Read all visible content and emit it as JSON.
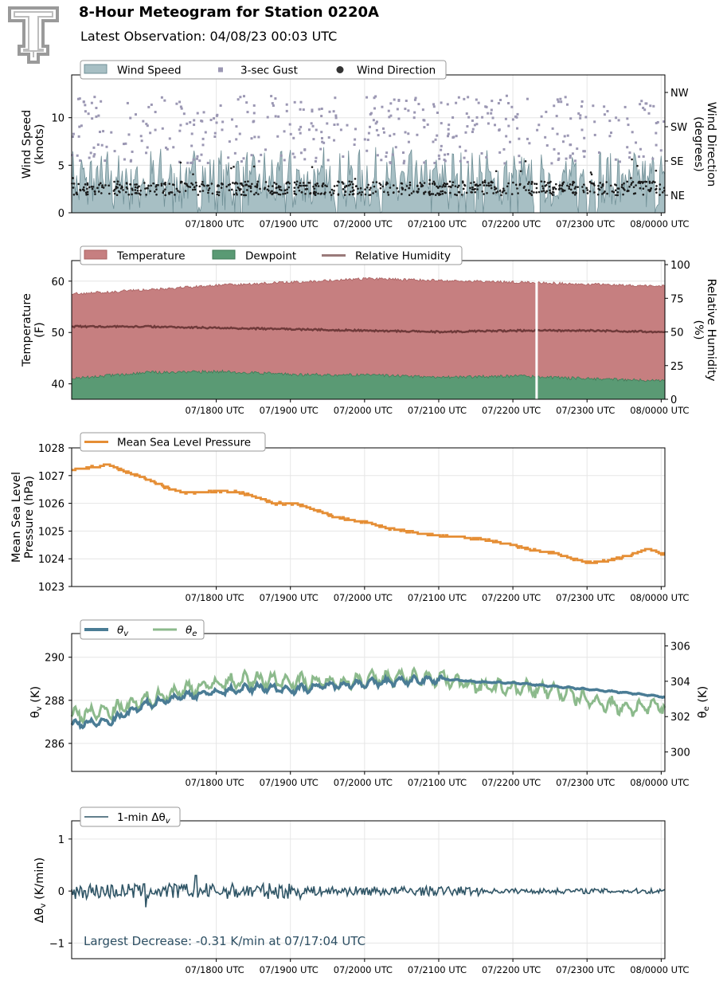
{
  "header": {
    "title": "8-Hour Meteogram for Station 0220A",
    "subtitle": "Latest Observation: 04/08/23 00:03 UTC"
  },
  "time_axis": {
    "start_utc": "07/16:03",
    "end_utc": "08/00:03",
    "ticks": [
      "07/1800 UTC",
      "07/1900 UTC",
      "07/2000 UTC",
      "07/2100 UTC",
      "07/2200 UTC",
      "07/2300 UTC",
      "08/0000 UTC"
    ]
  },
  "chart_data": [
    {
      "id": "wind",
      "type": "area",
      "ylabel": [
        "Wind Speed",
        "(knots)"
      ],
      "y2label": [
        "Wind Direction",
        "(degrees)"
      ],
      "ylim": [
        0,
        14.5
      ],
      "yticks": [
        0,
        5,
        10
      ],
      "y2ticks": [
        "NE",
        "SE",
        "SW",
        "NW"
      ],
      "legend": [
        "Wind Speed",
        "3-sec Gust",
        "Wind Direction"
      ],
      "colors": {
        "speed_fill": "#a7bfc4",
        "speed_line": "#6f8f96",
        "gust": "#9b97b3",
        "direction": "#1a1a1a"
      },
      "series": [
        {
          "name": "Wind Speed",
          "mean": 3.2,
          "range": [
            0,
            6.9
          ]
        },
        {
          "name": "3-sec Gust",
          "range": [
            5.2,
            12.3
          ]
        },
        {
          "name": "Wind Direction",
          "mean": "NE",
          "range": [
            "NE",
            "SE"
          ]
        }
      ],
      "data_gap_utc": "07/22:30"
    },
    {
      "id": "temperature",
      "type": "area",
      "ylabel": [
        "Temperature",
        "(F)"
      ],
      "y2label": [
        "Relative Humidity",
        "(%)"
      ],
      "ylim": [
        37,
        64
      ],
      "yticks": [
        40,
        50,
        60
      ],
      "y2lim": [
        0,
        103
      ],
      "y2ticks": [
        0,
        25,
        50,
        75,
        100
      ],
      "legend": [
        "Temperature",
        "Dewpoint",
        "Relative Humidity"
      ],
      "colors": {
        "temperature": "#c67f80",
        "dewpoint": "#5a9a74",
        "rh": "#6f3a3a"
      },
      "series": [
        {
          "name": "Temperature",
          "x": [
            0,
            1,
            2,
            3,
            4,
            5,
            6,
            7,
            8
          ],
          "values": [
            57.5,
            58.3,
            59.2,
            59.8,
            60.5,
            60.1,
            59.8,
            59.4,
            59.0
          ]
        },
        {
          "name": "Dewpoint",
          "x": [
            0,
            1,
            2,
            3,
            4,
            5,
            6,
            7,
            8
          ],
          "values": [
            41.0,
            42.2,
            42.4,
            41.8,
            41.7,
            41.3,
            41.5,
            41.0,
            40.6
          ]
        },
        {
          "name": "Relative Humidity",
          "x": [
            0,
            1,
            2,
            3,
            4,
            5,
            6,
            7,
            8
          ],
          "values": [
            54,
            54,
            53,
            52,
            51,
            50,
            51,
            51,
            50
          ]
        }
      ],
      "data_gap_utc": "07/22:30"
    },
    {
      "id": "pressure",
      "type": "line",
      "ylabel": [
        "Mean Sea Level",
        "Pressure (hPa)"
      ],
      "ylim": [
        1023,
        1028
      ],
      "yticks": [
        1023,
        1024,
        1025,
        1026,
        1027,
        1028
      ],
      "legend": [
        "Mean Sea Level Pressure"
      ],
      "colors": {
        "line": "#e58e35"
      },
      "series": [
        {
          "name": "Mean Sea Level Pressure",
          "x": [
            0,
            0.25,
            0.5,
            0.75,
            1.0,
            1.25,
            1.5,
            1.75,
            2.0,
            2.25,
            2.5,
            2.75,
            3.0,
            3.25,
            3.5,
            3.75,
            4.0,
            4.25,
            4.5,
            4.75,
            5.0,
            5.25,
            5.5,
            5.75,
            6.0,
            6.25,
            6.5,
            6.75,
            7.0,
            7.25,
            7.5,
            7.75,
            8.0
          ],
          "values": [
            1027.2,
            1027.3,
            1027.4,
            1027.1,
            1026.9,
            1026.6,
            1026.4,
            1026.4,
            1026.45,
            1026.4,
            1026.2,
            1026.0,
            1026.0,
            1025.8,
            1025.55,
            1025.4,
            1025.3,
            1025.1,
            1025.0,
            1024.9,
            1024.8,
            1024.8,
            1024.7,
            1024.6,
            1024.45,
            1024.3,
            1024.2,
            1024.0,
            1023.85,
            1023.95,
            1024.1,
            1024.35,
            1024.15
          ]
        }
      ]
    },
    {
      "id": "theta",
      "type": "line",
      "ylabel": "θv (K)",
      "y2label": "θe (K)",
      "ylim": [
        284.7,
        291.1
      ],
      "yticks": [
        286,
        288,
        290
      ],
      "y2lim": [
        298.9,
        306.7
      ],
      "y2ticks": [
        300,
        302,
        304,
        306
      ],
      "legend": [
        "θv",
        "θe"
      ],
      "colors": {
        "theta_v": "#4a7c95",
        "theta_e": "#8cba8c"
      },
      "series": [
        {
          "name": "θv",
          "x": [
            0,
            0.5,
            1.0,
            1.5,
            2.0,
            2.5,
            3.0,
            3.5,
            4.0,
            4.5,
            5.0,
            5.5,
            6.0,
            6.5,
            7.0,
            7.5,
            8.0
          ],
          "values": [
            286.9,
            287.0,
            287.8,
            288.2,
            288.4,
            288.6,
            288.5,
            288.7,
            288.8,
            288.9,
            289.0,
            288.85,
            288.8,
            288.65,
            288.5,
            288.35,
            288.15
          ]
        },
        {
          "name": "θe",
          "x": [
            0,
            0.5,
            1.0,
            1.5,
            2.0,
            2.5,
            3.0,
            3.5,
            4.0,
            4.5,
            5.0,
            5.5,
            6.0,
            6.5,
            7.0,
            7.5,
            8.0
          ],
          "values": [
            302.1,
            302.3,
            302.9,
            303.5,
            303.9,
            304.1,
            304.0,
            303.9,
            304.1,
            304.2,
            304.2,
            303.7,
            303.6,
            303.5,
            302.9,
            302.5,
            302.6
          ]
        }
      ]
    },
    {
      "id": "dtheta",
      "type": "line",
      "ylabel": "Δθv (K/min)",
      "ylim": [
        -1.3,
        1.35
      ],
      "yticks": [
        -1,
        0,
        1
      ],
      "legend": [
        "1-min Δθv"
      ],
      "colors": {
        "line": "#2f5566",
        "annotation": "#2d4f63"
      },
      "series": [
        {
          "name": "1-min Δθv",
          "mean": 0.0,
          "range": [
            -0.31,
            0.3
          ]
        }
      ],
      "annotation": "Largest Decrease: -0.31 K/min at 07/17:04 UTC"
    }
  ]
}
